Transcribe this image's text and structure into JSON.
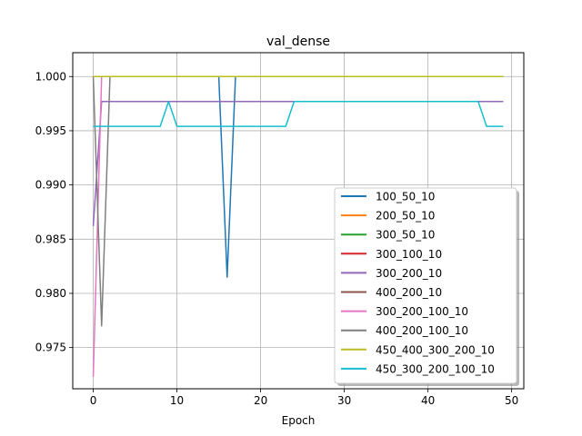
{
  "chart_data": {
    "type": "line",
    "title": "val_dense",
    "xlabel": "Epoch",
    "ylabel": "",
    "xlim": [
      -2.45,
      51.45
    ],
    "ylim": [
      0.9712,
      1.0022
    ],
    "xticks": [
      0,
      10,
      20,
      30,
      40,
      50
    ],
    "yticks": [
      0.975,
      0.98,
      0.985,
      0.99,
      0.995,
      1.0
    ],
    "ytick_labels": [
      "0.975",
      "0.980",
      "0.985",
      "0.990",
      "0.995",
      "1.000"
    ],
    "grid": true,
    "legend_position": "lower right",
    "series": [
      {
        "name": "100_50_10",
        "color": "#1f77b4",
        "points": [
          [
            0,
            1.0
          ],
          [
            15,
            1.0
          ],
          [
            16,
            0.9815
          ],
          [
            17,
            1.0
          ],
          [
            49,
            1.0
          ]
        ]
      },
      {
        "name": "200_50_10",
        "color": "#ff7f0e",
        "points": [
          [
            0,
            1.0
          ],
          [
            49,
            1.0
          ]
        ]
      },
      {
        "name": "300_50_10",
        "color": "#2ca02c",
        "points": [
          [
            0,
            1.0
          ],
          [
            49,
            1.0
          ]
        ]
      },
      {
        "name": "300_100_10",
        "color": "#d62728",
        "points": [
          [
            0,
            1.0
          ],
          [
            49,
            1.0
          ]
        ]
      },
      {
        "name": "300_200_10",
        "color": "#9467bd",
        "points": [
          [
            0,
            0.9862
          ],
          [
            1,
            0.9977
          ],
          [
            49,
            0.9977
          ]
        ]
      },
      {
        "name": "400_200_10",
        "color": "#8c564b",
        "points": [
          [
            0,
            1.0
          ],
          [
            49,
            1.0
          ]
        ]
      },
      {
        "name": "300_200_100_10",
        "color": "#e377c2",
        "points": [
          [
            0,
            0.9723
          ],
          [
            1,
            1.0
          ],
          [
            49,
            1.0
          ]
        ]
      },
      {
        "name": "400_200_100_10",
        "color": "#7f7f7f",
        "points": [
          [
            0,
            1.0
          ],
          [
            1,
            0.977
          ],
          [
            2,
            1.0
          ],
          [
            49,
            1.0
          ]
        ]
      },
      {
        "name": "450_400_300_200_10",
        "color": "#bcbd22",
        "points": [
          [
            0,
            1.0
          ],
          [
            49,
            1.0
          ]
        ]
      },
      {
        "name": "450_300_200_100_10",
        "color": "#17becf",
        "points": [
          [
            0,
            0.9954
          ],
          [
            8,
            0.9954
          ],
          [
            9,
            0.9977
          ],
          [
            10,
            0.9954
          ],
          [
            23,
            0.9954
          ],
          [
            24,
            0.9977
          ],
          [
            46,
            0.9977
          ],
          [
            47,
            0.9954
          ],
          [
            49,
            0.9954
          ]
        ]
      }
    ]
  }
}
